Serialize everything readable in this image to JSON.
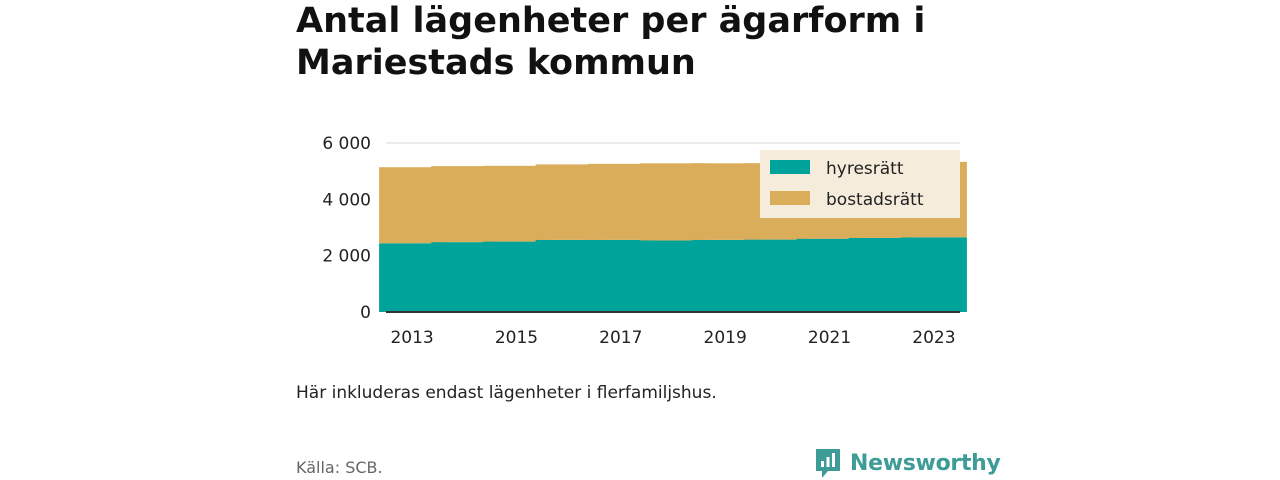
{
  "title": "Antal lägenheter per ägarform i Mariestads kommun",
  "note": "Här inkluderas endast lägenheter i flerfamiljshus.",
  "source": "Källa: SCB.",
  "brand": "Newsworthy",
  "colors": {
    "hyresratt": "#00a39a",
    "bostadsratt": "#d9ad5a",
    "legend_bg": "#f6ecdb",
    "brand": "#3d9c97"
  },
  "chart_data": {
    "type": "bar",
    "stacked": true,
    "categories": [
      "2013",
      "2014",
      "2015",
      "2016",
      "2017",
      "2018",
      "2019",
      "2020",
      "2021",
      "2022",
      "2023"
    ],
    "series": [
      {
        "name": "hyresrätt",
        "values": [
          2440,
          2480,
          2500,
          2560,
          2560,
          2540,
          2560,
          2570,
          2600,
          2630,
          2650
        ]
      },
      {
        "name": "bostadsrätt",
        "values": [
          2700,
          2700,
          2690,
          2680,
          2700,
          2740,
          2720,
          2710,
          2690,
          2680,
          2680
        ]
      }
    ],
    "x_tick_labels": [
      "2013",
      "2015",
      "2017",
      "2019",
      "2021",
      "2023"
    ],
    "y_ticks": [
      0,
      2000,
      4000,
      6000
    ],
    "y_tick_labels": [
      "0",
      "2 000",
      "4 000",
      "6 000"
    ],
    "ylim": [
      0,
      6000
    ],
    "grid": true,
    "legend_position": "top-right"
  }
}
